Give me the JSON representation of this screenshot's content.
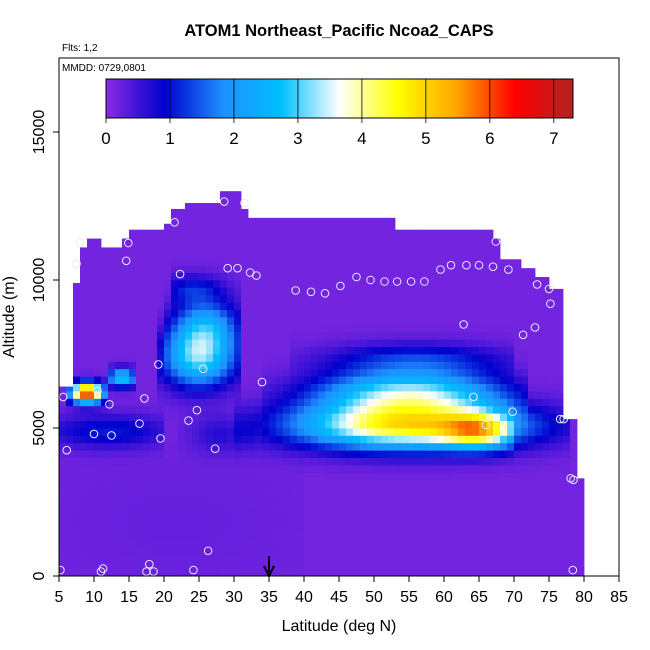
{
  "chart_data": {
    "type": "heatmap",
    "title": "ATOM1 Northeast_Pacific Ncoa2_CAPS",
    "flights_label": "Flts: 1,2",
    "dates_label": "MMDD: 0729,0801",
    "xlabel": "Latitude (deg N)",
    "ylabel": "Altitude (m)",
    "xlim": [
      5,
      85
    ],
    "ylim": [
      0,
      17500
    ],
    "xticks": [
      5,
      10,
      15,
      20,
      25,
      30,
      35,
      40,
      45,
      50,
      55,
      60,
      65,
      70,
      75,
      80,
      85
    ],
    "yticks": [
      0,
      5000,
      10000,
      15000
    ],
    "grid": false,
    "colorbar": {
      "position": "top",
      "min": 0,
      "max": 7.3,
      "ticks": [
        0,
        1,
        2,
        3,
        4,
        5,
        6,
        7
      ],
      "colors": [
        "#8a2be2",
        "#0000cd",
        "#1e90ff",
        "#00bfff",
        "#ffffff",
        "#ffff00",
        "#ffa500",
        "#ff0000",
        "#b22222"
      ]
    },
    "marker": {
      "x": 35,
      "label": "arrow"
    },
    "grid_cell": {
      "dx": 1,
      "dy": 250
    },
    "profile": [
      [
        5,
        0,
        6400
      ],
      [
        6,
        0,
        6400
      ],
      [
        7,
        0,
        9900
      ],
      [
        8,
        0,
        11100
      ],
      [
        9,
        0,
        11400
      ],
      [
        10,
        0,
        11400
      ],
      [
        11,
        0,
        11100
      ],
      [
        12,
        0,
        11100
      ],
      [
        13,
        0,
        11100
      ],
      [
        14,
        0,
        11400
      ],
      [
        15,
        0,
        11700
      ],
      [
        16,
        0,
        11700
      ],
      [
        17,
        0,
        11700
      ],
      [
        18,
        0,
        11700
      ],
      [
        19,
        0,
        11700
      ],
      [
        20,
        0,
        11900
      ],
      [
        21,
        0,
        12400
      ],
      [
        22,
        0,
        12400
      ],
      [
        23,
        0,
        12600
      ],
      [
        24,
        0,
        12600
      ],
      [
        25,
        0,
        12600
      ],
      [
        26,
        0,
        12600
      ],
      [
        27,
        0,
        12600
      ],
      [
        28,
        0,
        13000
      ],
      [
        29,
        0,
        13000
      ],
      [
        30,
        0,
        13000
      ],
      [
        31,
        0,
        12400
      ],
      [
        32,
        0,
        12100
      ],
      [
        33,
        0,
        12100
      ],
      [
        34,
        0,
        12100
      ],
      [
        35,
        0,
        12100
      ],
      [
        36,
        0,
        12100
      ],
      [
        37,
        0,
        12100
      ],
      [
        38,
        0,
        12100
      ],
      [
        39,
        0,
        12100
      ],
      [
        40,
        0,
        12100
      ],
      [
        41,
        0,
        12100
      ],
      [
        42,
        0,
        12100
      ],
      [
        43,
        0,
        12100
      ],
      [
        44,
        0,
        12100
      ],
      [
        45,
        0,
        12100
      ],
      [
        46,
        0,
        12100
      ],
      [
        47,
        0,
        12100
      ],
      [
        48,
        0,
        12100
      ],
      [
        49,
        0,
        12100
      ],
      [
        50,
        0,
        12100
      ],
      [
        51,
        0,
        12100
      ],
      [
        52,
        0,
        12100
      ],
      [
        53,
        0,
        11700
      ],
      [
        54,
        0,
        11700
      ],
      [
        55,
        0,
        11700
      ],
      [
        56,
        0,
        11700
      ],
      [
        57,
        0,
        11700
      ],
      [
        58,
        0,
        11700
      ],
      [
        59,
        0,
        11700
      ],
      [
        60,
        0,
        11700
      ],
      [
        61,
        0,
        11700
      ],
      [
        62,
        0,
        11700
      ],
      [
        63,
        0,
        11700
      ],
      [
        64,
        0,
        11700
      ],
      [
        65,
        0,
        11700
      ],
      [
        66,
        0,
        11700
      ],
      [
        67,
        0,
        11400
      ],
      [
        68,
        0,
        10700
      ],
      [
        69,
        0,
        10700
      ],
      [
        70,
        0,
        10700
      ],
      [
        71,
        0,
        10400
      ],
      [
        72,
        0,
        10400
      ],
      [
        73,
        0,
        10100
      ],
      [
        74,
        0,
        10100
      ],
      [
        75,
        0,
        9700
      ],
      [
        76,
        0,
        9700
      ],
      [
        77,
        0,
        5300
      ],
      [
        78,
        0,
        5300
      ],
      [
        79,
        0,
        3300
      ]
    ],
    "ambient_value": 0.15,
    "features": [
      {
        "lat_center": 55,
        "lat_sigma": 11,
        "alt_center": 5100,
        "alt_sigma": 550,
        "peak": 4.6,
        "lat_min": 30,
        "lat_max": 78
      },
      {
        "lat_center": 65,
        "lat_sigma": 3.5,
        "alt_center": 4900,
        "alt_sigma": 400,
        "peak": 2.7,
        "lat_min": 55,
        "lat_max": 70
      },
      {
        "lat_center": 55,
        "lat_sigma": 9,
        "alt_center": 6200,
        "alt_sigma": 500,
        "peak": 2.9,
        "lat_min": 34,
        "lat_max": 72
      },
      {
        "lat_center": 56,
        "lat_sigma": 9,
        "alt_center": 7300,
        "alt_sigma": 400,
        "peak": 1.1,
        "lat_min": 38,
        "lat_max": 70
      },
      {
        "lat_center": 25,
        "lat_sigma": 3.6,
        "alt_center": 7400,
        "alt_sigma": 700,
        "peak": 2.9,
        "lat_min": 19,
        "lat_max": 31
      },
      {
        "lat_center": 26,
        "lat_sigma": 3.2,
        "alt_center": 8500,
        "alt_sigma": 600,
        "peak": 1.8,
        "lat_min": 20,
        "lat_max": 31
      },
      {
        "lat_center": 24,
        "lat_sigma": 3.2,
        "alt_center": 9700,
        "alt_sigma": 350,
        "peak": 0.9,
        "lat_min": 21,
        "lat_max": 31
      },
      {
        "lat_center": 9,
        "lat_sigma": 1.6,
        "alt_center": 6200,
        "alt_sigma": 230,
        "peak": 6.3,
        "lat_min": 6,
        "lat_max": 12
      },
      {
        "lat_center": 14,
        "lat_sigma": 1.5,
        "alt_center": 6700,
        "alt_sigma": 220,
        "peak": 2.7,
        "lat_min": 12,
        "lat_max": 16
      },
      {
        "lat_center": 12,
        "lat_sigma": 6,
        "alt_center": 4900,
        "alt_sigma": 400,
        "peak": 0.9,
        "lat_min": 5,
        "lat_max": 20
      },
      {
        "lat_center": 28,
        "lat_sigma": 3,
        "alt_center": 4800,
        "alt_sigma": 450,
        "peak": 0.5,
        "lat_min": 22,
        "lat_max": 33
      },
      {
        "lat_center": 22,
        "lat_sigma": 14,
        "alt_center": 1800,
        "alt_sigma": 1800,
        "peak": 0.1,
        "lat_min": 5,
        "lat_max": 40
      }
    ],
    "samples": [
      [
        5.2,
        200
      ],
      [
        5.6,
        6050
      ],
      [
        6.1,
        4250
      ],
      [
        7.5,
        10550
      ],
      [
        8.0,
        11250
      ],
      [
        10.0,
        4800
      ],
      [
        10.5,
        6250
      ],
      [
        11.0,
        150
      ],
      [
        11.3,
        250
      ],
      [
        12.2,
        5800
      ],
      [
        12.5,
        4750
      ],
      [
        14.6,
        10650
      ],
      [
        14.9,
        11250
      ],
      [
        16.5,
        5150
      ],
      [
        17.2,
        6000
      ],
      [
        17.5,
        150
      ],
      [
        17.9,
        400
      ],
      [
        18.5,
        150
      ],
      [
        19.2,
        7150
      ],
      [
        19.5,
        4650
      ],
      [
        21.5,
        11950
      ],
      [
        22.3,
        10200
      ],
      [
        23.5,
        5250
      ],
      [
        24.2,
        200
      ],
      [
        24.7,
        5600
      ],
      [
        25.6,
        7000
      ],
      [
        26.3,
        850
      ],
      [
        27.3,
        4300
      ],
      [
        28.6,
        12650
      ],
      [
        29.1,
        10400
      ],
      [
        30.5,
        10400
      ],
      [
        31.5,
        12600
      ],
      [
        32.3,
        10250
      ],
      [
        33.2,
        10150
      ],
      [
        34.0,
        6550
      ],
      [
        38.8,
        9650
      ],
      [
        41.0,
        9600
      ],
      [
        43.0,
        9550
      ],
      [
        45.2,
        9800
      ],
      [
        47.5,
        10100
      ],
      [
        49.5,
        10000
      ],
      [
        51.5,
        9950
      ],
      [
        53.3,
        9950
      ],
      [
        55.3,
        9950
      ],
      [
        57.2,
        9950
      ],
      [
        59.5,
        10350
      ],
      [
        61.0,
        10500
      ],
      [
        62.8,
        8500
      ],
      [
        63.2,
        10500
      ],
      [
        64.2,
        6050
      ],
      [
        65.0,
        10500
      ],
      [
        66.0,
        5100
      ],
      [
        67.0,
        10450
      ],
      [
        67.4,
        11300
      ],
      [
        69.2,
        10350
      ],
      [
        69.8,
        5550
      ],
      [
        71.3,
        8150
      ],
      [
        73.0,
        8400
      ],
      [
        73.3,
        9850
      ],
      [
        75.0,
        9700
      ],
      [
        75.2,
        9200
      ],
      [
        76.6,
        5300
      ],
      [
        77.1,
        5300
      ],
      [
        78.1,
        3300
      ],
      [
        78.5,
        3250
      ],
      [
        78.4,
        200
      ]
    ]
  }
}
